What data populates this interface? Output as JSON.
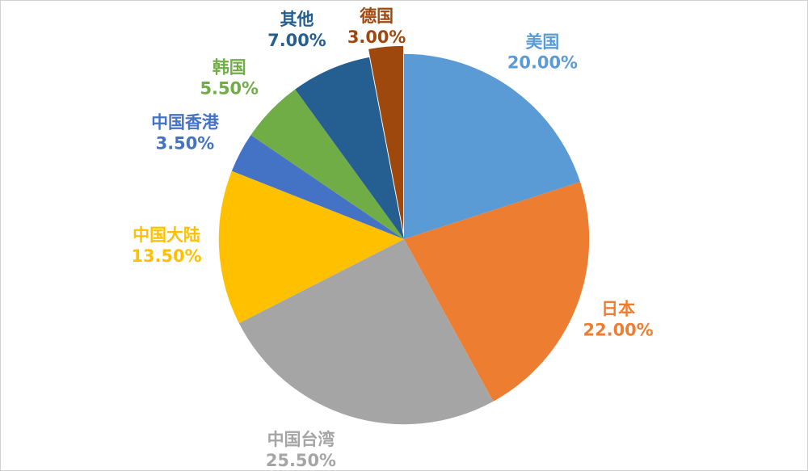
{
  "chart_data": {
    "type": "pie",
    "title": "",
    "legend_position": "none",
    "start_angle_deg": 0,
    "direction": "clockwise",
    "categories": [
      "美国",
      "日本",
      "中国台湾",
      "中国大陆",
      "中国香港",
      "韩国",
      "其他",
      "德国"
    ],
    "values": [
      20.0,
      22.0,
      25.5,
      13.5,
      3.5,
      5.5,
      7.0,
      3.0
    ],
    "labels": [
      "20.00%",
      "22.00%",
      "25.50%",
      "13.50%",
      "3.50%",
      "5.50%",
      "7.00%",
      "3.00%"
    ],
    "colors": [
      "#5B9BD5",
      "#ED7D31",
      "#A5A5A5",
      "#FFC000",
      "#4472C4",
      "#70AD47",
      "#255E91",
      "#9E480E"
    ]
  }
}
